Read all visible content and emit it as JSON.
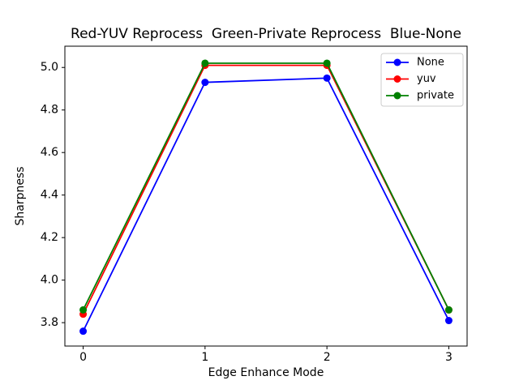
{
  "chart_data": {
    "type": "line",
    "title": "Red-YUV Reprocess  Green-Private Reprocess  Blue-None",
    "xlabel": "Edge Enhance Mode",
    "ylabel": "Sharpness",
    "x": [
      0,
      1,
      2,
      3
    ],
    "series": [
      {
        "name": "None",
        "color": "#0000ff",
        "values": [
          3.76,
          4.93,
          4.95,
          3.81
        ]
      },
      {
        "name": "yuv",
        "color": "#ff0000",
        "values": [
          3.84,
          5.01,
          5.01,
          3.86
        ]
      },
      {
        "name": "private",
        "color": "#008000",
        "values": [
          3.86,
          5.02,
          5.02,
          3.86
        ]
      }
    ],
    "xticks": [
      0,
      1,
      2,
      3
    ],
    "yticks": [
      3.8,
      4.0,
      4.2,
      4.4,
      4.6,
      4.8,
      5.0
    ],
    "xlim": [
      -0.15,
      3.15
    ],
    "ylim": [
      3.69,
      5.1
    ],
    "grid": false,
    "legend": {
      "position": "top-right",
      "entries": [
        "None",
        "yuv",
        "private"
      ]
    },
    "colors": {
      "background": "#ffffff",
      "spine": "#000000",
      "legend_border": "#cccccc"
    }
  }
}
